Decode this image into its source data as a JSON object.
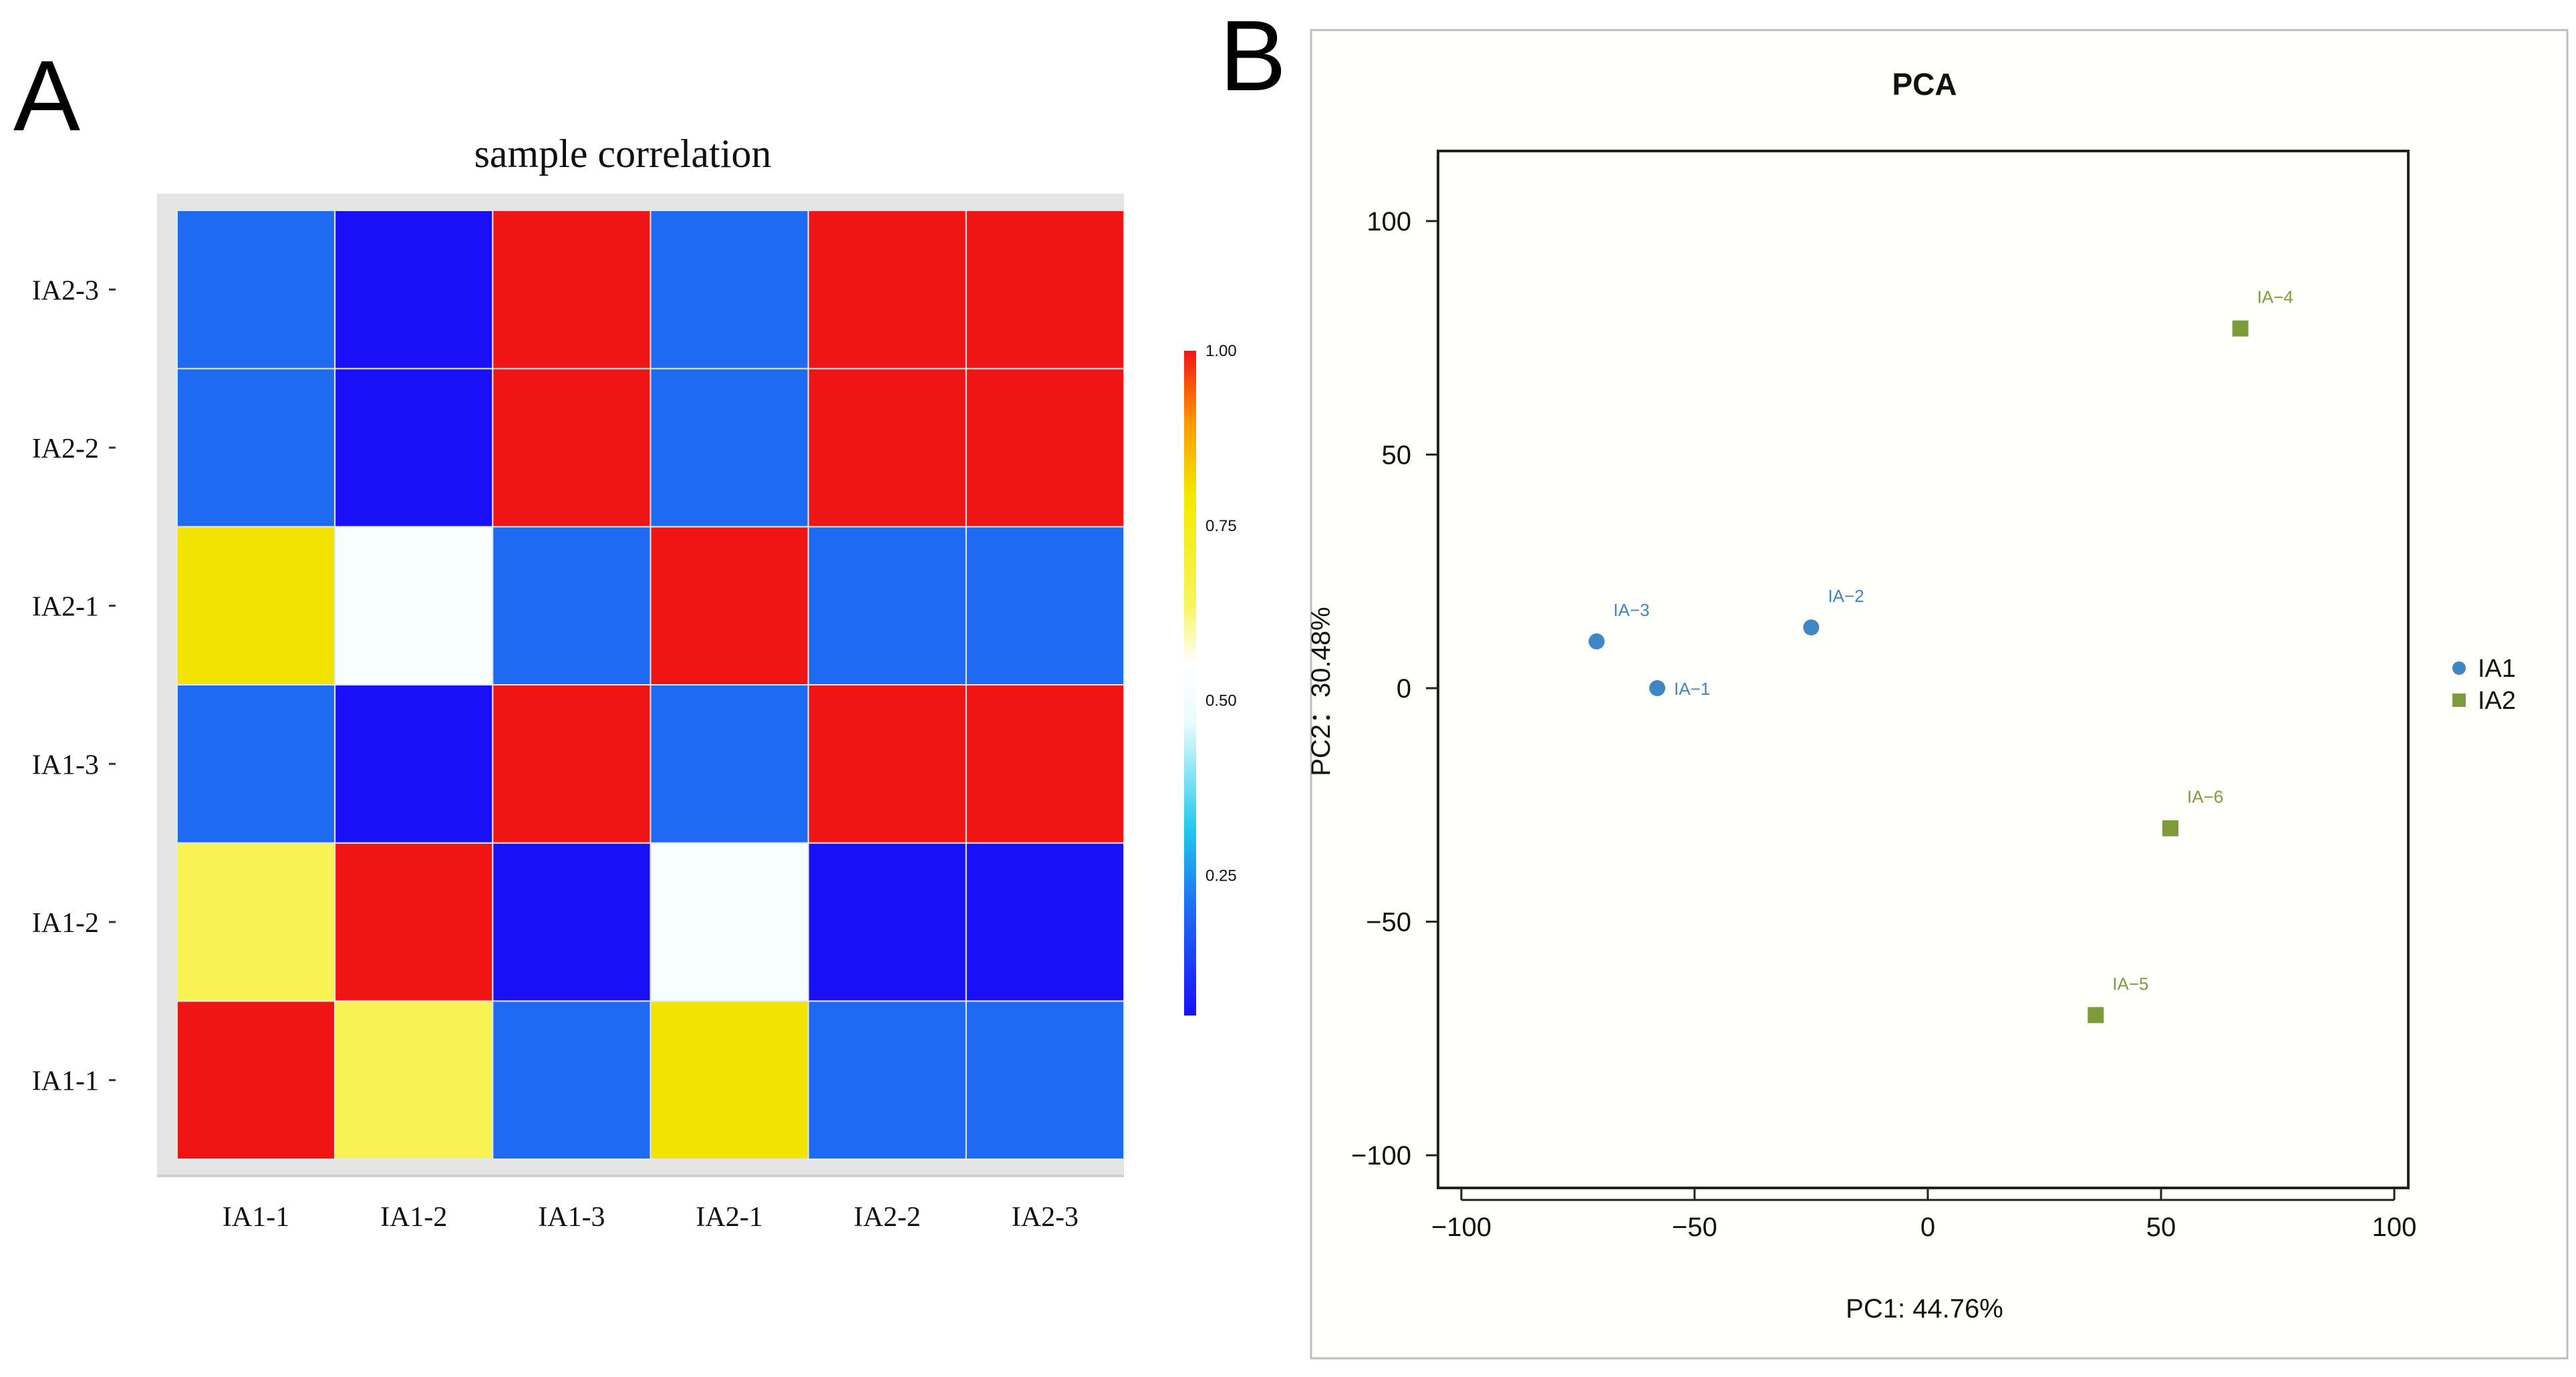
{
  "figure": {
    "panel_a_label": "A",
    "panel_b_label": "B"
  },
  "chart_data": [
    {
      "type": "heatmap",
      "title": "sample correlation",
      "x_categories": [
        "IA1-1",
        "IA1-2",
        "IA1-3",
        "IA2-1",
        "IA2-2",
        "IA2-3"
      ],
      "y_categories": [
        "IA1-1",
        "IA1-2",
        "IA1-3",
        "IA2-1",
        "IA2-2",
        "IA2-3"
      ],
      "values": [
        [
          1.0,
          0.65,
          0.2,
          0.8,
          0.2,
          0.2
        ],
        [
          0.65,
          1.0,
          0.05,
          0.52,
          0.05,
          0.05
        ],
        [
          0.2,
          0.05,
          1.0,
          0.2,
          1.0,
          1.0
        ],
        [
          0.8,
          0.52,
          0.2,
          1.0,
          0.2,
          0.2
        ],
        [
          0.2,
          0.05,
          1.0,
          0.2,
          1.0,
          1.0
        ],
        [
          0.2,
          0.05,
          1.0,
          0.2,
          1.0,
          1.0
        ]
      ],
      "colorbar": {
        "ticks": [
          "1.00",
          "0.75",
          "0.50",
          "0.25"
        ],
        "tick_values": [
          1.0,
          0.75,
          0.5,
          0.25
        ],
        "range": [
          0.05,
          1.0
        ],
        "colors": [
          "#1a10f5",
          "#1e6cf2",
          "#20c8ee",
          "#e8fcfc",
          "#ffffff",
          "#f7f45a",
          "#f2ea00",
          "#ff9a00",
          "#f01515"
        ],
        "stops": [
          0.0,
          0.16,
          0.28,
          0.44,
          0.53,
          0.62,
          0.78,
          0.89,
          1.0
        ]
      }
    },
    {
      "type": "scatter",
      "title": "PCA",
      "xlabel": "PC1: 44.76%",
      "ylabel": "PC2：30.48%",
      "xlim": [
        -105,
        103
      ],
      "ylim": [
        -107,
        115
      ],
      "xticks": [
        -100,
        -50,
        0,
        50,
        100
      ],
      "yticks": [
        -100,
        -50,
        0,
        50,
        100
      ],
      "x_tick_labels": [
        "−100",
        "−50",
        "0",
        "50",
        "100"
      ],
      "y_tick_labels": [
        "−100",
        "−50",
        "0",
        "50",
        "100"
      ],
      "legend_position": "right",
      "series": [
        {
          "name": "IA1",
          "marker": "circle",
          "color": "#3f86c4",
          "points": [
            {
              "label": "IA−1",
              "x": -58,
              "y": 0
            },
            {
              "label": "IA−2",
              "x": -25,
              "y": 13
            },
            {
              "label": "IA−3",
              "x": -71,
              "y": 10
            }
          ]
        },
        {
          "name": "IA2",
          "marker": "square",
          "color": "#7c9c3c",
          "points": [
            {
              "label": "IA−4",
              "x": 67,
              "y": 77
            },
            {
              "label": "IA−5",
              "x": 36,
              "y": -70
            },
            {
              "label": "IA−6",
              "x": 52,
              "y": -30
            }
          ]
        }
      ]
    }
  ]
}
